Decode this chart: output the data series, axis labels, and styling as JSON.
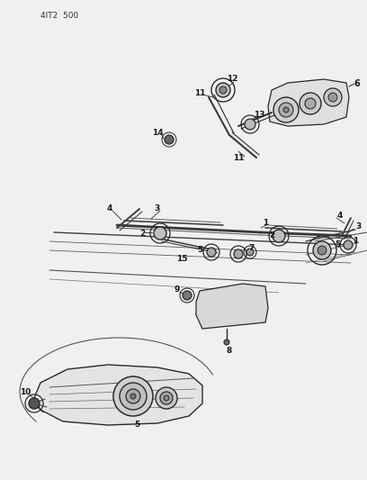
{
  "bg_color": "#f0f0f0",
  "line_color": "#2a2a2a",
  "header_text": "4IT2  500",
  "figsize": [
    4.08,
    5.33
  ],
  "dpi": 100
}
